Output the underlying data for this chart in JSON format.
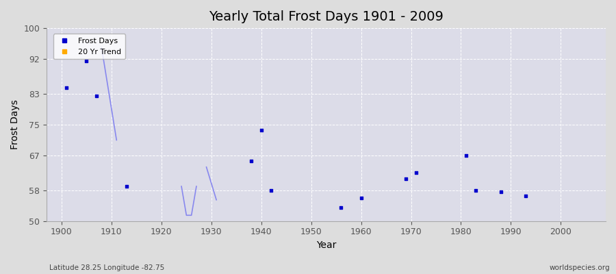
{
  "title": "Yearly Total Frost Days 1901 - 2009",
  "xlabel": "Year",
  "ylabel": "Frost Days",
  "subtitle": "Latitude 28.25 Longitude -82.75",
  "watermark": "worldspecies.org",
  "ylim": [
    50,
    100
  ],
  "xlim": [
    1897,
    2009
  ],
  "yticks": [
    50,
    58,
    67,
    75,
    83,
    92,
    100
  ],
  "xticks": [
    1900,
    1910,
    1920,
    1930,
    1940,
    1950,
    1960,
    1970,
    1980,
    1990,
    2000
  ],
  "scatter_color": "#0000cc",
  "trend_color": "#8888ee",
  "scatter_points": [
    [
      1901,
      84.5
    ],
    [
      1905,
      91.5
    ],
    [
      1907,
      82.5
    ],
    [
      1913,
      59.0
    ],
    [
      1938,
      65.5
    ],
    [
      1940,
      73.5
    ],
    [
      1942,
      58.0
    ],
    [
      1956,
      53.5
    ],
    [
      1960,
      56.0
    ],
    [
      1969,
      61.0
    ],
    [
      1971,
      62.5
    ],
    [
      1981,
      67.0
    ],
    [
      1983,
      58.0
    ],
    [
      1988,
      57.5
    ],
    [
      1993,
      56.5
    ]
  ],
  "trend_segments": [
    [
      [
        1908,
        95.0
      ],
      [
        1911,
        71.0
      ]
    ],
    [
      [
        1924,
        59.0
      ],
      [
        1925,
        51.5
      ],
      [
        1926,
        51.5
      ],
      [
        1927,
        59.0
      ]
    ],
    [
      [
        1929,
        64.0
      ],
      [
        1931,
        55.5
      ]
    ]
  ],
  "background_color": "#dddddd",
  "plot_bg_color": "#dcdce8",
  "grid_color": "#ffffff",
  "legend_marker_color": "#0000cc",
  "legend_trend_color": "#ffaa00"
}
